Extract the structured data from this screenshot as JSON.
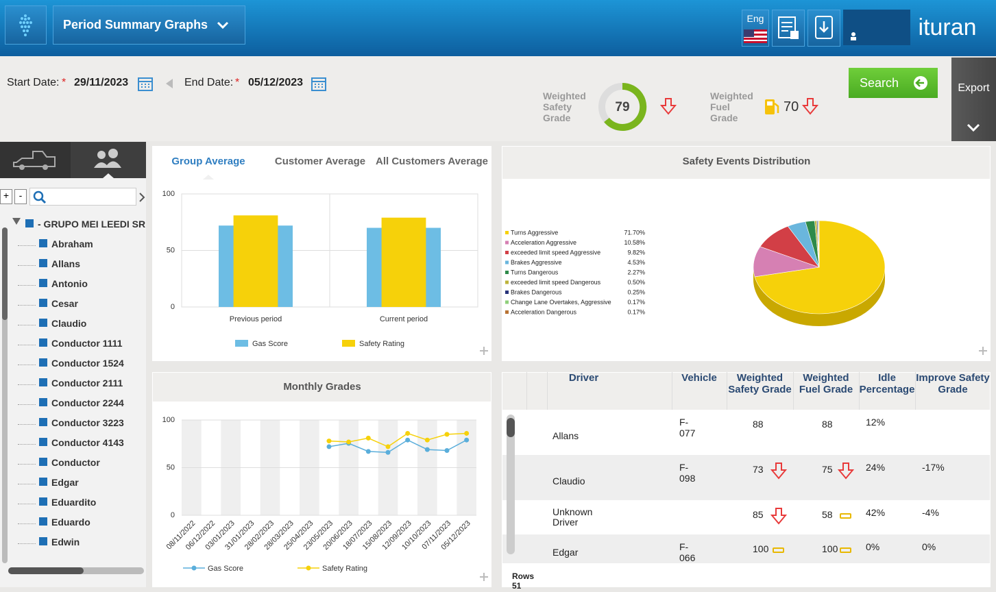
{
  "header": {
    "title": "Period Summary Graphs",
    "language": "Eng",
    "brand": "ituran"
  },
  "filters": {
    "start_label": "Start Date:",
    "required_mark": "*",
    "start_date": "29/11/2023",
    "end_label": "End Date:",
    "end_date": "05/12/2023",
    "safety_label": "Weighted Safety Grade",
    "safety_grade": 79,
    "safety_trend": "down",
    "fuel_label": "Weighted Fuel Grade",
    "fuel_grade": 70,
    "fuel_trend": "down",
    "search": "Search",
    "export": "Export"
  },
  "tree": {
    "expand": "+",
    "collapse": "-",
    "group": "- GRUPO MEI LEEDI SRL",
    "drivers": [
      "Abraham",
      "Allans",
      "Antonio",
      "Cesar",
      "Claudio",
      "Conductor 1111",
      "Conductor 1524",
      "Conductor 2111",
      "Conductor 2244",
      "Conductor 3223",
      "Conductor 4143",
      "Conductor",
      "Edgar",
      "Eduardito",
      "Eduardo",
      "Edwin"
    ]
  },
  "tabs": [
    "Group Average",
    "Customer Average",
    "All Customers Average"
  ],
  "bar_chart": {
    "type": "bar",
    "categories": [
      "Previous period",
      "Current period"
    ],
    "series": [
      {
        "name": "Gas Score",
        "color": "#6dbde4",
        "values": [
          72,
          70
        ]
      },
      {
        "name": "Safety Rating",
        "color": "#f6d10a",
        "values": [
          81,
          79
        ]
      }
    ],
    "ylim": [
      0,
      100
    ],
    "yticks": [
      0,
      50,
      100
    ],
    "grid": true
  },
  "pie_chart": {
    "type": "pie",
    "title": "Safety Events Distribution",
    "categories": [
      "Turns Aggressive",
      "Acceleration Aggressive",
      "exceeded limit speed Aggressive",
      "Brakes Aggressive",
      "Turns Dangerous",
      "exceeded limit speed Dangerous",
      "Brakes Dangerous",
      "Change Lane Overtakes, Aggressive",
      "Acceleration Dangerous"
    ],
    "values": [
      71.7,
      10.58,
      9.82,
      4.53,
      2.27,
      0.5,
      0.25,
      0.17,
      0.17
    ],
    "value_labels": [
      "71.70%",
      "10.58%",
      "9.82%",
      "4.53%",
      "2.27%",
      "0.50%",
      "0.25%",
      "0.17%",
      "0.17%"
    ],
    "colors": [
      "#f6d10a",
      "#d680b3",
      "#d23f46",
      "#6ab6dd",
      "#2e8a4a",
      "#bcb33a",
      "#28337a",
      "#8fcf7a",
      "#b87333"
    ]
  },
  "line_chart": {
    "type": "line",
    "title": "Monthly Grades",
    "categories": [
      "08/11/2022",
      "06/12/2022",
      "03/01/2023",
      "31/01/2023",
      "28/02/2023",
      "28/03/2023",
      "25/04/2023",
      "23/05/2023",
      "20/06/2023",
      "18/07/2023",
      "15/08/2023",
      "12/09/2023",
      "10/10/2023",
      "07/11/2023",
      "05/12/2023"
    ],
    "series": [
      {
        "name": "Gas Score",
        "color": "#5aaedb",
        "values": [
          null,
          null,
          null,
          null,
          null,
          null,
          null,
          72,
          75.5,
          67,
          66,
          79,
          69,
          68,
          79
        ]
      },
      {
        "name": "Safety Rating",
        "color": "#f6d10a",
        "values": [
          null,
          null,
          null,
          null,
          null,
          null,
          null,
          78,
          77,
          81,
          72,
          86,
          79,
          85,
          86
        ]
      }
    ],
    "ylim": [
      0,
      100
    ],
    "yticks": [
      0,
      50,
      100
    ],
    "grid": true
  },
  "table": {
    "columns": [
      "Driver",
      "Vehicle",
      "Weighted Safety Grade",
      "Weighted Fuel Grade",
      "Idle Percentage",
      "Improve Safety Grade"
    ],
    "rows": [
      {
        "driver": "Allans",
        "vehicle": "F-077",
        "safety": 88,
        "safety_trend": null,
        "fuel": 88,
        "fuel_trend": null,
        "idle": "12%",
        "improve": null
      },
      {
        "driver": "Claudio",
        "vehicle": "F-098",
        "safety": 73,
        "safety_trend": "down",
        "fuel": 75,
        "fuel_trend": "down",
        "idle": "24%",
        "improve": "-17%"
      },
      {
        "driver": "Unknown Driver",
        "vehicle": null,
        "safety": 85,
        "safety_trend": "down",
        "fuel": 58,
        "fuel_trend": "flat",
        "idle": "42%",
        "improve": "-4%"
      },
      {
        "driver": "Edgar",
        "vehicle": "F-066",
        "safety": 100,
        "safety_trend": "flat",
        "fuel": 100,
        "fuel_trend": "flat",
        "idle": "0%",
        "improve": "0%"
      }
    ],
    "footer": "Rows 51"
  }
}
